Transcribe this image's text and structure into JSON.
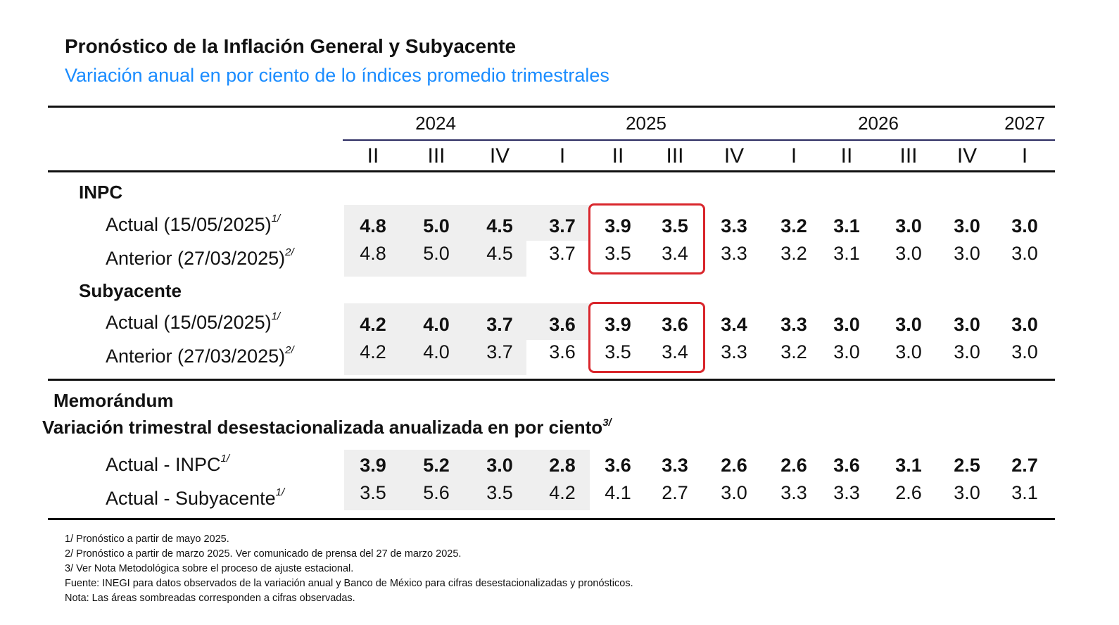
{
  "title": "Pronóstico de la Inflación General y Subyacente",
  "subtitle": "Variación anual en por ciento de lo índices promedio trimestrales",
  "years": [
    "2024",
    "2025",
    "2026",
    "2027"
  ],
  "quarters": [
    "II",
    "III",
    "IV",
    "I",
    "II",
    "III",
    "IV",
    "I",
    "II",
    "III",
    "IV",
    "I"
  ],
  "sections": {
    "inpc": "INPC",
    "subyacente": "Subyacente",
    "memorandum": "Memorándum",
    "memorandum_sub": "Variación trimestral desestacionalizada anualizada en por ciento",
    "memorandum_sub_note": "3/"
  },
  "rows": {
    "inpc_actual": {
      "label": "Actual (15/05/2025)",
      "note": "1/",
      "values": [
        "4.8",
        "5.0",
        "4.5",
        "3.7",
        "3.9",
        "3.5",
        "3.3",
        "3.2",
        "3.1",
        "3.0",
        "3.0",
        "3.0"
      ]
    },
    "inpc_anterior": {
      "label": "Anterior (27/03/2025)",
      "note": "2/",
      "values": [
        "4.8",
        "5.0",
        "4.5",
        "3.7",
        "3.5",
        "3.4",
        "3.3",
        "3.2",
        "3.1",
        "3.0",
        "3.0",
        "3.0"
      ]
    },
    "sub_actual": {
      "label": "Actual (15/05/2025)",
      "note": "1/",
      "values": [
        "4.2",
        "4.0",
        "3.7",
        "3.6",
        "3.9",
        "3.6",
        "3.4",
        "3.3",
        "3.0",
        "3.0",
        "3.0",
        "3.0"
      ]
    },
    "sub_anterior": {
      "label": "Anterior (27/03/2025)",
      "note": "2/",
      "values": [
        "4.2",
        "4.0",
        "3.7",
        "3.6",
        "3.5",
        "3.4",
        "3.3",
        "3.2",
        "3.0",
        "3.0",
        "3.0",
        "3.0"
      ]
    },
    "memo_inpc": {
      "label": "Actual - INPC",
      "note": "1/",
      "values": [
        "3.9",
        "5.2",
        "3.0",
        "2.8",
        "3.6",
        "3.3",
        "2.6",
        "2.6",
        "3.6",
        "3.1",
        "2.5",
        "2.7"
      ]
    },
    "memo_sub": {
      "label": "Actual - Subyacente",
      "note": "1/",
      "values": [
        "3.5",
        "5.6",
        "3.5",
        "4.2",
        "4.1",
        "2.7",
        "3.0",
        "3.3",
        "3.3",
        "2.6",
        "3.0",
        "3.1"
      ]
    }
  },
  "footnotes": [
    "1/ Pronóstico a partir de mayo 2025.",
    "2/ Pronóstico a partir de marzo 2025. Ver comunicado de prensa del 27 de marzo 2025.",
    "3/ Ver Nota Metodológica sobre el proceso de ajuste estacional.",
    "Fuente: INEGI para datos observados de la variación anual y Banco de México para cifras desestacionalizadas y pronósticos.",
    "Nota: Las áreas sombreadas corresponden a cifras observadas."
  ],
  "colors": {
    "subtitle": "#1a8cff",
    "highlight": "#d9262c",
    "shade": "#efefef",
    "rule_navy": "#2a2a60"
  }
}
